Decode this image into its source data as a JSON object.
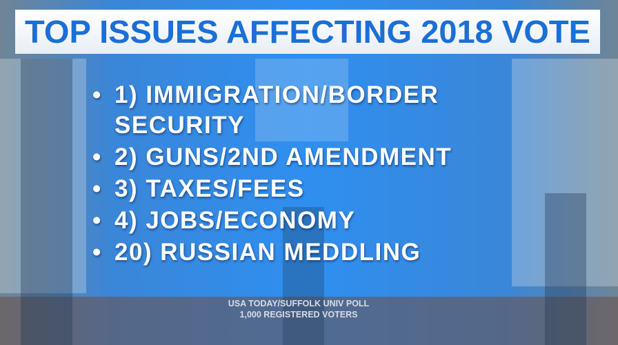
{
  "title": "TOP ISSUES AFFECTING 2018 VOTE",
  "items": [
    "1) IMMIGRATION/BORDER SECURITY",
    "2) GUNS/2ND AMENDMENT",
    "3) TAXES/FEES",
    "4) JOBS/ECONOMY",
    "20) RUSSIAN MEDDLING"
  ],
  "source": [
    "USA TODAY/SUFFOLK UNIV POLL",
    "1,000 REGISTERED VOTERS"
  ]
}
